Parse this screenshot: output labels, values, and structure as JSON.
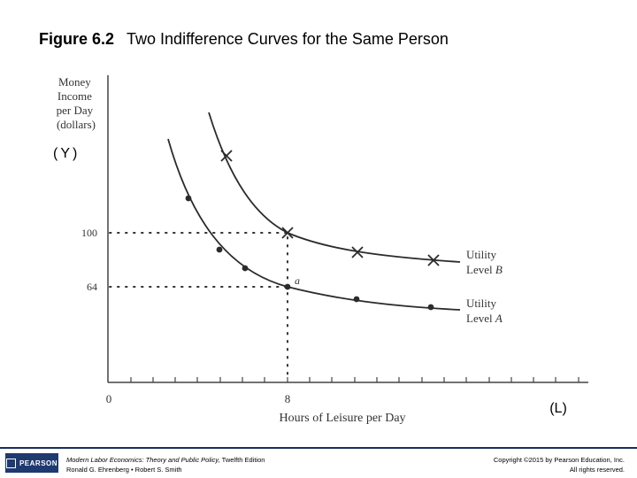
{
  "title": {
    "number": "Figure 6.2",
    "text": "Two Indifference Curves for the Same Person"
  },
  "axes": {
    "y_label_lines": [
      "Money",
      "Income",
      "per Day",
      "(dollars)"
    ],
    "y_symbol": "(Y)",
    "x_label": "Hours of Leisure per Day",
    "x_symbol": "(L)",
    "x_ticks": {
      "origin": "0",
      "eight": "8"
    },
    "y_ticks": {
      "hundred": "100",
      "sixtyfour": "64"
    }
  },
  "curves": {
    "b": {
      "line1": "Utility",
      "line2_prefix": "Level ",
      "line2_var": "B"
    },
    "a": {
      "line1": "Utility",
      "line2_prefix": "Level ",
      "line2_var": "A"
    },
    "point_a_label": "a"
  },
  "footer": {
    "logo": "PEARSON",
    "book_title": "Modern Labor Economics: Theory and Public Policy,",
    "edition": " Twelfth Edition",
    "authors": "Ronald G. Ehrenberg • Robert S. Smith",
    "copyright": "Copyright ©2015 by Pearson Education, Inc.",
    "rights": "All rights reserved."
  },
  "colors": {
    "curve": "#2b2b2b",
    "footer_rule": "#1a2e5c",
    "logo_bg": "#1f3a6e"
  }
}
